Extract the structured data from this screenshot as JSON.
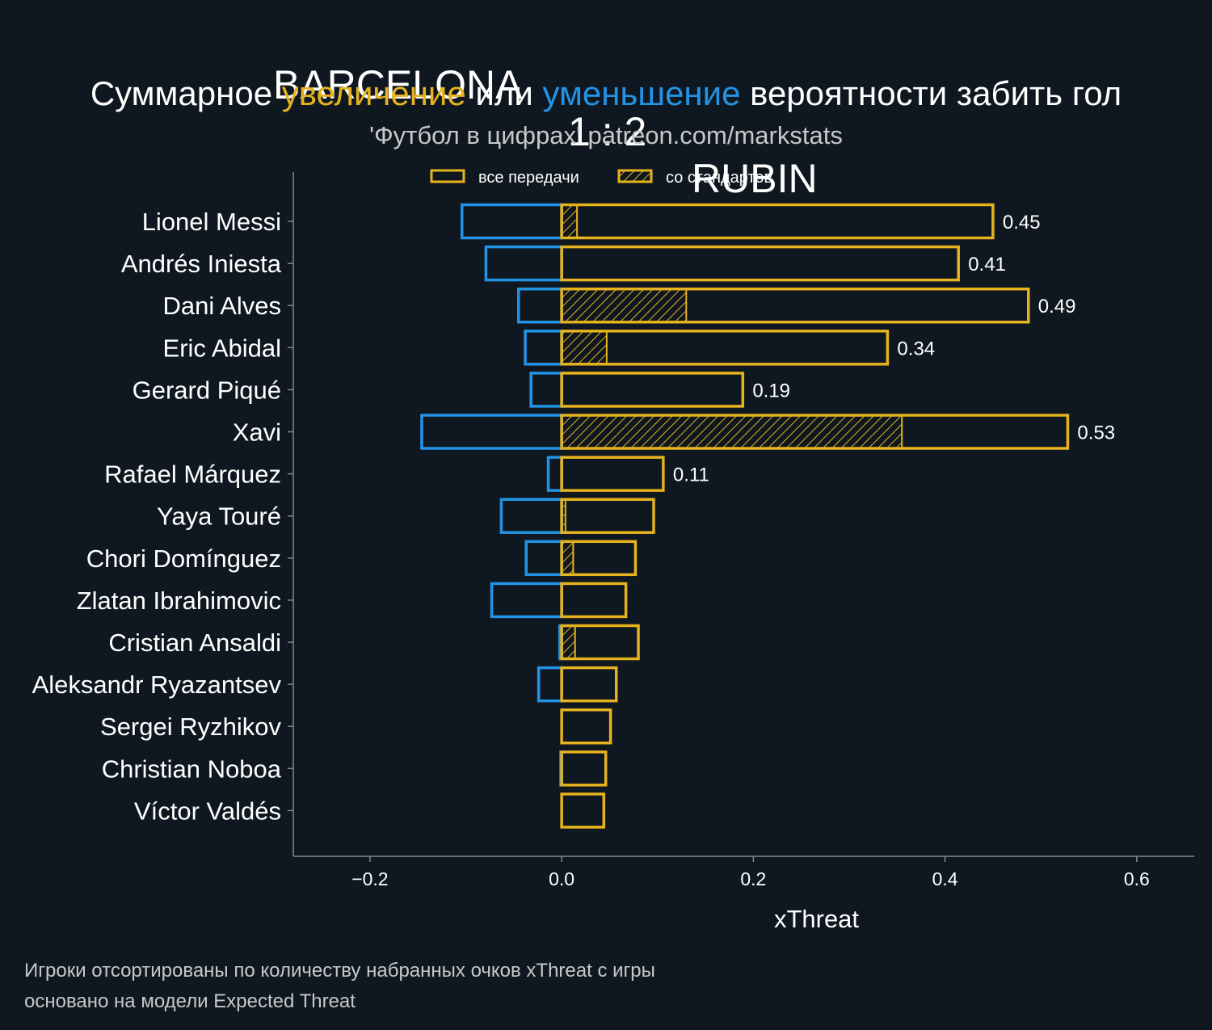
{
  "header": {
    "team_home": "BARCELONA",
    "score": "1 : 2",
    "team_away": "RUBIN",
    "subtitle_part1": "Суммарное ",
    "subtitle_increase": "увеличение",
    "subtitle_part2": " или ",
    "subtitle_decrease": "уменьшение",
    "subtitle_part3": " вероятности забить гол",
    "source": "'Футбол в цифрах' patreon.com/markstats"
  },
  "footer": {
    "line1": "Игроки отсортированы по количеству набранных очков xThreat с игры",
    "line2": "основано на модели Expected Threat"
  },
  "colors": {
    "background": "#0f1820",
    "increase": "#e6b21e",
    "decrease": "#2393e6",
    "axis": "#7f8c8d"
  },
  "chart_data": {
    "type": "bar",
    "orientation": "horizontal",
    "xlabel": "xThreat",
    "xlim": [
      -0.28,
      0.66
    ],
    "xticks": [
      -0.2,
      0.0,
      0.2,
      0.4,
      0.6
    ],
    "xtick_labels": [
      "−0.2",
      "0.0",
      "0.2",
      "0.4",
      "0.6"
    ],
    "legend": {
      "placement": "top",
      "entries": [
        "все передачи",
        "со стандартов"
      ]
    },
    "categories": [
      "Lionel Messi",
      "Andrés Iniesta",
      "Dani Alves",
      "Eric Abidal",
      "Gerard Piqué",
      "Xavi",
      "Rafael Márquez",
      "Yaya Touré",
      "Chori Domínguez",
      "Zlatan Ibrahimovic",
      "Cristian Ansaldi",
      "Aleksandr Ryazantsev",
      "Sergei Ryzhikov",
      "Christian Noboa",
      "Víctor Valdés"
    ],
    "series": [
      {
        "name": "все передачи",
        "role": "increase",
        "values": [
          0.45,
          0.414,
          0.487,
          0.34,
          0.189,
          0.528,
          0.106,
          0.096,
          0.077,
          0.067,
          0.08,
          0.057,
          0.051,
          0.046,
          0.044
        ]
      },
      {
        "name": "со стандартов",
        "role": "increase-set-pieces",
        "values": [
          0.016,
          0,
          0.13,
          0.047,
          0,
          0.355,
          0,
          0.004,
          0.012,
          0,
          0.014,
          0,
          0,
          0,
          0
        ]
      },
      {
        "role": "decrease",
        "values": [
          -0.104,
          -0.079,
          -0.045,
          -0.038,
          -0.032,
          -0.146,
          -0.014,
          -0.063,
          -0.037,
          -0.073,
          -0.002,
          -0.024,
          0,
          -0.001,
          0
        ]
      }
    ],
    "data_labels": [
      "0.45",
      "0.41",
      "0.49",
      "0.34",
      "0.19",
      "0.53",
      "0.11",
      "",
      "",
      "",
      "",
      "",
      "",
      "",
      ""
    ]
  }
}
